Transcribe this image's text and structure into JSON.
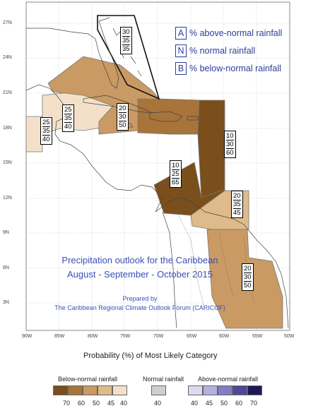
{
  "map": {
    "title_line1": "Precipitation outlook for the Caribbean",
    "title_line2": "August - September - October 2015",
    "prepared_by": "Prepared by",
    "organization": "The Caribbean Regional Climate Outlook Forum (CARICOF)",
    "lat_labels": [
      "27N",
      "24N",
      "21N",
      "18N",
      "15N",
      "12N",
      "9N",
      "6N",
      "3N"
    ],
    "lon_labels": [
      "90W",
      "85W",
      "80W",
      "75W",
      "70W",
      "65W",
      "60W",
      "55W",
      "50W"
    ]
  },
  "key": {
    "above": {
      "letter": "A",
      "text": "% above-normal rainfall"
    },
    "normal": {
      "letter": "N",
      "text": "% normal rainfall"
    },
    "below": {
      "letter": "B",
      "text": "% below-normal rainfall"
    }
  },
  "regions": [
    {
      "id": "bahamas",
      "values": [
        "30",
        "35",
        "35"
      ]
    },
    {
      "id": "belize",
      "values": [
        "25",
        "35",
        "40"
      ]
    },
    {
      "id": "honduras",
      "values": [
        "25",
        "35",
        "40"
      ]
    },
    {
      "id": "greater-antilles",
      "values": [
        "20",
        "30",
        "50"
      ]
    },
    {
      "id": "eastern-caribbean",
      "values": [
        "10",
        "30",
        "60"
      ]
    },
    {
      "id": "central-caribbean",
      "values": [
        "10",
        "25",
        "65"
      ]
    },
    {
      "id": "trinidad",
      "values": [
        "20",
        "35",
        "45"
      ]
    },
    {
      "id": "guianas",
      "values": [
        "20",
        "30",
        "50"
      ]
    }
  ],
  "scale": {
    "title": "Probability (%) of Most Likely Category",
    "below_label": "Below-normal rainfall",
    "normal_label": "Normal rainfall",
    "above_label": "Above-normal rainfall",
    "below_ticks": [
      "70",
      "60",
      "50",
      "45",
      "40"
    ],
    "normal_ticks": [
      "40"
    ],
    "above_ticks": [
      "40",
      "45",
      "50",
      "60",
      "70"
    ],
    "below_colors": [
      "#7a4f1c",
      "#a8743a",
      "#c99a63",
      "#dfbb8b",
      "#f4e0c8"
    ],
    "normal_color": "#cfcfcf",
    "above_colors": [
      "#dcdaf0",
      "#b5b0de",
      "#837dc4",
      "#4f4899",
      "#1c1858"
    ]
  }
}
